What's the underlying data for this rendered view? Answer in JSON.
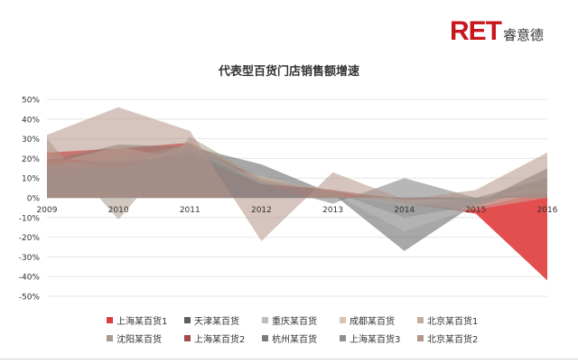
{
  "logo": {
    "mark": "RET",
    "sub": "睿意德"
  },
  "chart_data": {
    "type": "area",
    "title": "代表型百货门店销售额增速",
    "xlabel": "",
    "ylabel": "",
    "x": [
      "2009",
      "2010",
      "2011",
      "2012",
      "2013",
      "2014",
      "2015",
      "2016"
    ],
    "ylim": [
      -0.5,
      0.5
    ],
    "yticks": [
      {
        "v": 0.5,
        "label": "50%"
      },
      {
        "v": 0.4,
        "label": "40%"
      },
      {
        "v": 0.3,
        "label": "30%"
      },
      {
        "v": 0.2,
        "label": "20%"
      },
      {
        "v": 0.1,
        "label": "10%"
      },
      {
        "v": 0.0,
        "label": "0%"
      },
      {
        "v": -0.1,
        "label": "-10%"
      },
      {
        "v": -0.2,
        "label": "-20%"
      },
      {
        "v": -0.3,
        "label": "-30%"
      },
      {
        "v": -0.4,
        "label": "-40%"
      },
      {
        "v": -0.5,
        "label": "-50%"
      }
    ],
    "grid": true,
    "legend_position": "bottom",
    "series": [
      {
        "name": "上海某百货1",
        "color": "#e03c3c",
        "values": [
          0.23,
          0.25,
          0.28,
          0.09,
          0.03,
          -0.03,
          -0.08,
          -0.42
        ]
      },
      {
        "name": "天津某百货",
        "color": "#5e5e5e",
        "values": [
          0.19,
          0.27,
          0.26,
          0.17,
          0.02,
          -0.27,
          -0.03,
          0.15
        ]
      },
      {
        "name": "重庆某百货",
        "color": "#bdbdbd",
        "values": [
          0.21,
          0.14,
          0.28,
          0.08,
          0.02,
          -0.17,
          -0.05,
          0.03
        ]
      },
      {
        "name": "成都某百货",
        "color": "#dcc2b3",
        "values": [
          0.13,
          0.16,
          0.19,
          0.11,
          0.02,
          -0.04,
          -0.01,
          0.06
        ]
      },
      {
        "name": "北京某百货1",
        "color": "#c7aca0",
        "values": [
          0.17,
          0.26,
          0.19,
          0.09,
          0.04,
          -0.03,
          -0.06,
          0.0
        ]
      },
      {
        "name": "沈阳某百货",
        "color": "#a9998b",
        "values": [
          0.3,
          -0.11,
          0.31,
          0.1,
          0.03,
          0.0,
          -0.02,
          0.04
        ]
      },
      {
        "name": "上海某百货2",
        "color": "#a54b47",
        "values": [
          0.2,
          0.18,
          0.22,
          0.07,
          0.04,
          -0.01,
          0.0,
          0.02
        ]
      },
      {
        "name": "杭州某百货",
        "color": "#7b7b7b",
        "values": [
          0.14,
          0.16,
          0.24,
          0.07,
          -0.03,
          0.1,
          0.0,
          0.1
        ]
      },
      {
        "name": "上海某百货3",
        "color": "#8f8f8f",
        "values": [
          0.17,
          0.2,
          0.27,
          0.08,
          0.03,
          -0.1,
          -0.04,
          0.06
        ]
      },
      {
        "name": "北京某百货2",
        "color": "#b59588",
        "values": [
          0.32,
          0.46,
          0.34,
          -0.22,
          0.13,
          -0.01,
          0.04,
          0.23
        ]
      }
    ]
  }
}
